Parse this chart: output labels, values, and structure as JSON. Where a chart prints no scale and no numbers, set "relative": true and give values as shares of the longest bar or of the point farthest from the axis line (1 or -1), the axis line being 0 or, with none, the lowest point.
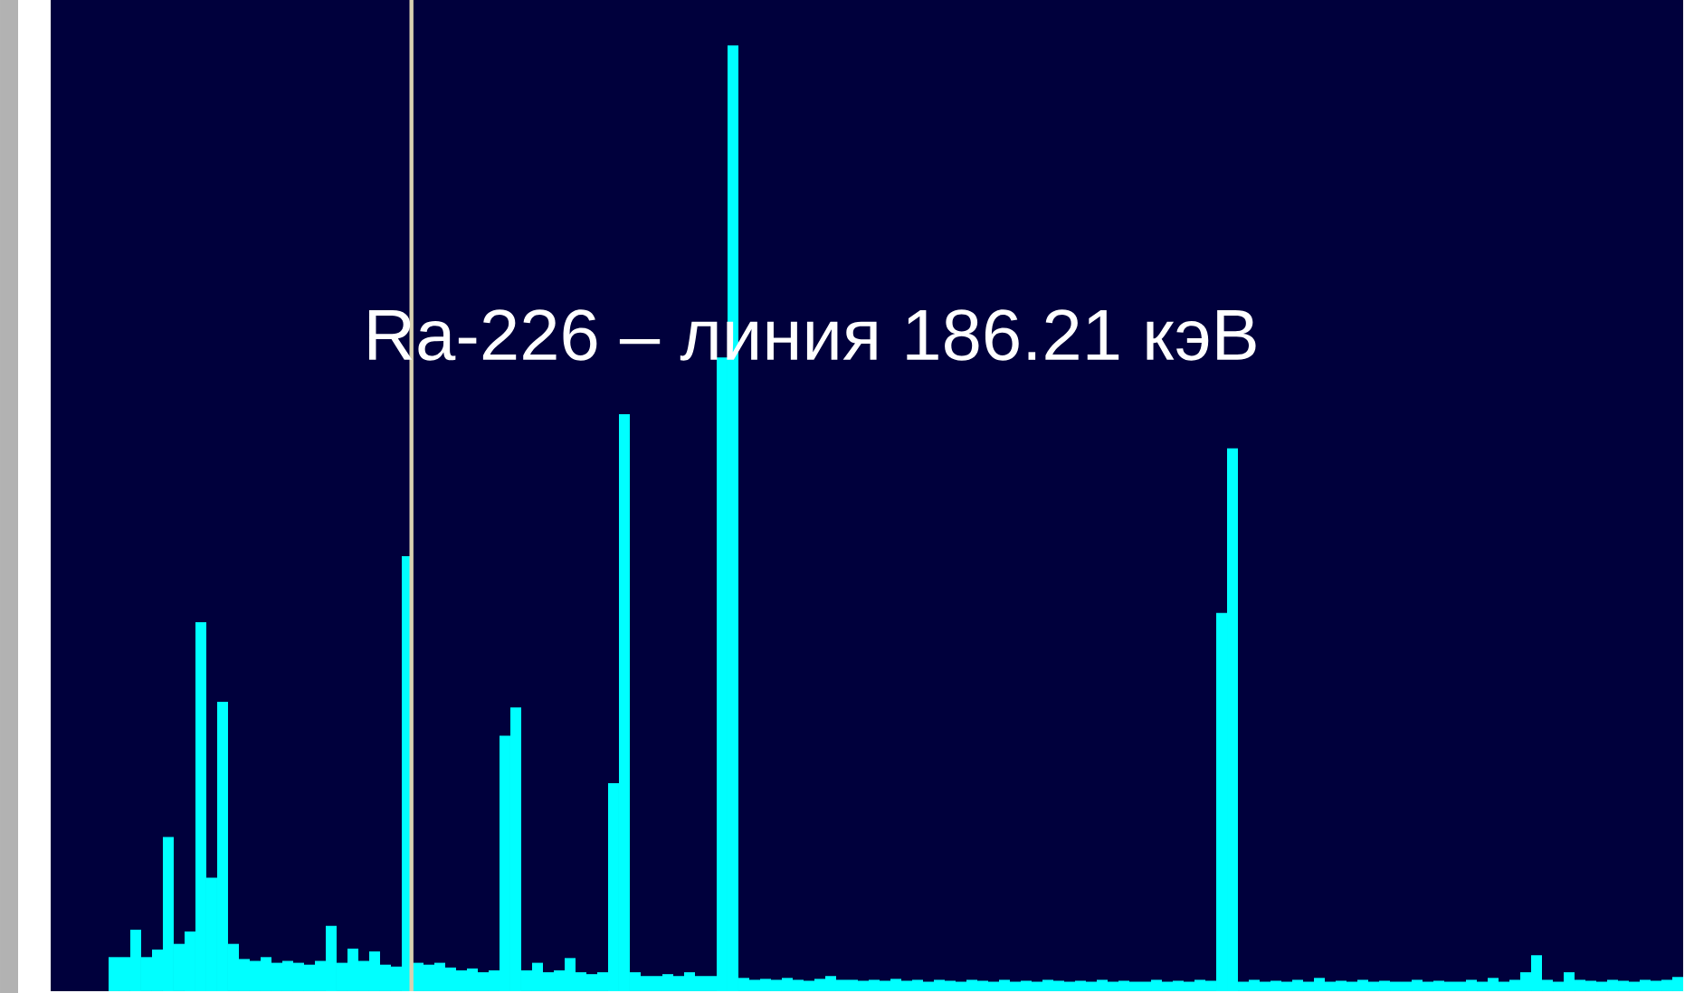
{
  "chart_data": {
    "type": "bar",
    "relative": true,
    "color": "#00ffff",
    "categories": [
      null,
      null,
      null,
      null,
      null,
      null,
      null,
      null,
      null,
      null,
      null,
      null,
      null,
      null,
      null,
      null,
      null,
      null,
      null,
      null,
      null,
      null,
      null,
      null,
      null,
      null,
      null,
      null,
      null,
      null,
      null,
      null,
      null,
      null,
      null,
      null,
      null,
      null,
      null,
      null,
      null,
      null,
      null,
      null,
      null,
      null,
      null,
      null,
      null,
      null,
      null,
      null,
      null,
      null,
      null,
      null,
      null,
      null,
      null,
      null,
      null,
      null,
      null,
      null,
      null,
      null,
      null,
      null,
      null,
      null,
      null,
      null,
      null,
      null,
      null,
      null,
      null,
      null,
      null,
      null,
      null,
      null,
      null,
      null,
      null,
      null,
      null,
      null,
      null,
      null,
      null,
      null,
      null,
      null,
      null,
      null,
      null,
      null,
      null,
      null,
      null,
      null,
      null,
      null,
      null,
      null,
      null,
      null,
      null,
      null,
      null,
      null,
      null,
      null,
      null,
      null,
      null,
      null,
      null,
      null,
      null,
      null,
      null,
      null,
      null,
      null,
      null,
      null,
      null,
      null,
      null,
      null,
      null,
      null,
      null,
      null,
      null,
      null,
      null,
      null,
      null,
      null,
      null,
      null,
      null
    ],
    "values": [
      0.036,
      0.036,
      0.065,
      0.036,
      0.044,
      0.163,
      0.05,
      0.063,
      0.39,
      0.12,
      0.306,
      0.05,
      0.034,
      0.032,
      0.036,
      0.03,
      0.032,
      0.03,
      0.028,
      0.032,
      0.069,
      0.03,
      0.045,
      0.032,
      0.042,
      0.028,
      0.026,
      0.46,
      0.03,
      0.028,
      0.03,
      0.025,
      0.022,
      0.024,
      0.02,
      0.022,
      0.27,
      0.3,
      0.022,
      0.03,
      0.02,
      0.022,
      0.035,
      0.02,
      0.018,
      0.02,
      0.22,
      0.61,
      0.02,
      0.016,
      0.016,
      0.018,
      0.016,
      0.02,
      0.016,
      0.016,
      0.67,
      1,
      0.014,
      0.012,
      0.013,
      0.012,
      0.014,
      0.012,
      0.011,
      0.013,
      0.016,
      0.012,
      0.012,
      0.011,
      0.012,
      0.011,
      0.013,
      0.011,
      0.012,
      0.01,
      0.012,
      0.011,
      0.01,
      0.012,
      0.011,
      0.01,
      0.012,
      0.01,
      0.011,
      0.01,
      0.012,
      0.011,
      0.01,
      0.011,
      0.01,
      0.012,
      0.01,
      0.011,
      0.01,
      0.01,
      0.012,
      0.01,
      0.011,
      0.01,
      0.012,
      0.011,
      0.4,
      0.574,
      0.01,
      0.012,
      0.01,
      0.011,
      0.01,
      0.012,
      0.01,
      0.014,
      0.01,
      0.011,
      0.01,
      0.012,
      0.01,
      0.011,
      0.01,
      0.01,
      0.012,
      0.01,
      0.011,
      0.01,
      0.01,
      0.012,
      0.01,
      0.014,
      0.01,
      0.012,
      0.02,
      0.038,
      0.012,
      0.01,
      0.02,
      0.012,
      0.011,
      0.01,
      0.012,
      0.011,
      0.01,
      0.012,
      0.011,
      0.012,
      0.015
    ],
    "annotations": [
      "Ra-226 – линия 186.21 кэВ"
    ]
  }
}
